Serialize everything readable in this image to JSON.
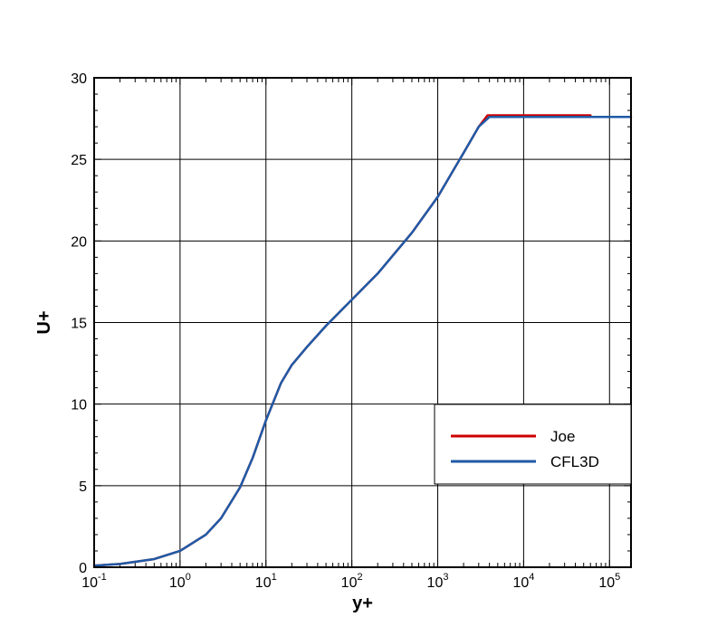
{
  "chart_data": {
    "type": "line",
    "xlabel": "y+",
    "ylabel": "U+",
    "x_scale": "log",
    "xlim": [
      0.1,
      177828
    ],
    "ylim": [
      0,
      30
    ],
    "grid": true,
    "legend_position": "right",
    "x_ticks": [
      {
        "value": 0.1,
        "base": "10",
        "exp": "-1"
      },
      {
        "value": 1,
        "base": "10",
        "exp": "0"
      },
      {
        "value": 10,
        "base": "10",
        "exp": "1"
      },
      {
        "value": 100,
        "base": "10",
        "exp": "2"
      },
      {
        "value": 1000,
        "base": "10",
        "exp": "3"
      },
      {
        "value": 10000,
        "base": "10",
        "exp": "4"
      },
      {
        "value": 100000,
        "base": "10",
        "exp": "5"
      }
    ],
    "y_ticks": [
      {
        "value": 0,
        "label": "0"
      },
      {
        "value": 5,
        "label": "5"
      },
      {
        "value": 10,
        "label": "10"
      },
      {
        "value": 15,
        "label": "15"
      },
      {
        "value": 20,
        "label": "20"
      },
      {
        "value": 25,
        "label": "25"
      },
      {
        "value": 30,
        "label": "30"
      }
    ],
    "series": [
      {
        "name": "Joe",
        "color": "#cc0000",
        "x": [
          0.1,
          0.2,
          0.5,
          1,
          2,
          3,
          5,
          7,
          10,
          15,
          20,
          30,
          50,
          100,
          200,
          500,
          1000,
          2000,
          3000,
          3800,
          10000,
          60000
        ],
        "y": [
          0.1,
          0.2,
          0.5,
          1.0,
          2.0,
          3.0,
          4.9,
          6.7,
          9.0,
          11.3,
          12.4,
          13.5,
          14.8,
          16.4,
          18.0,
          20.5,
          22.7,
          25.4,
          27.0,
          27.7,
          27.7,
          27.7
        ]
      },
      {
        "name": "CFL3D",
        "color": "#1f5aa6",
        "x": [
          0.1,
          0.2,
          0.5,
          1,
          2,
          3,
          5,
          7,
          10,
          15,
          20,
          30,
          50,
          100,
          200,
          500,
          1000,
          2000,
          3000,
          4000,
          10000,
          100000,
          177828
        ],
        "y": [
          0.1,
          0.2,
          0.5,
          1.0,
          2.0,
          3.0,
          4.9,
          6.7,
          9.0,
          11.3,
          12.4,
          13.5,
          14.8,
          16.4,
          18.0,
          20.5,
          22.7,
          25.4,
          27.0,
          27.6,
          27.6,
          27.6,
          27.6
        ]
      }
    ]
  }
}
